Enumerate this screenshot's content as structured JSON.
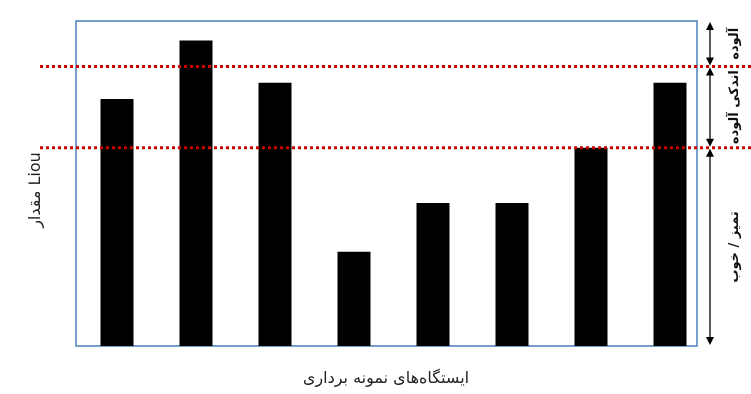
{
  "chart_data": {
    "type": "bar",
    "title": "",
    "xlabel": "ایستگاه‌های نمونه برداری",
    "ylabel": "مقدار Liou",
    "categories": [
      "",
      "",
      "",
      "",
      "",
      "",
      "",
      ""
    ],
    "values": [
      7.6,
      9.4,
      8.1,
      2.9,
      4.4,
      4.4,
      6.1,
      8.1
    ],
    "ylim": [
      0,
      10
    ],
    "thresholds": [
      6.1,
      8.6
    ],
    "zones": [
      {
        "label": "آلوده",
        "from": 8.6,
        "to": 10
      },
      {
        "label": "اندکی آلوده",
        "from": 6.1,
        "to": 8.6
      },
      {
        "label": "تمیز / خوب",
        "from": 0,
        "to": 6.1
      }
    ],
    "grid": false,
    "legend": "none",
    "colors": {
      "bar": "#000000",
      "frame": "#4a7ebb",
      "threshold": "#cc0000",
      "arrow": "#000000"
    }
  }
}
